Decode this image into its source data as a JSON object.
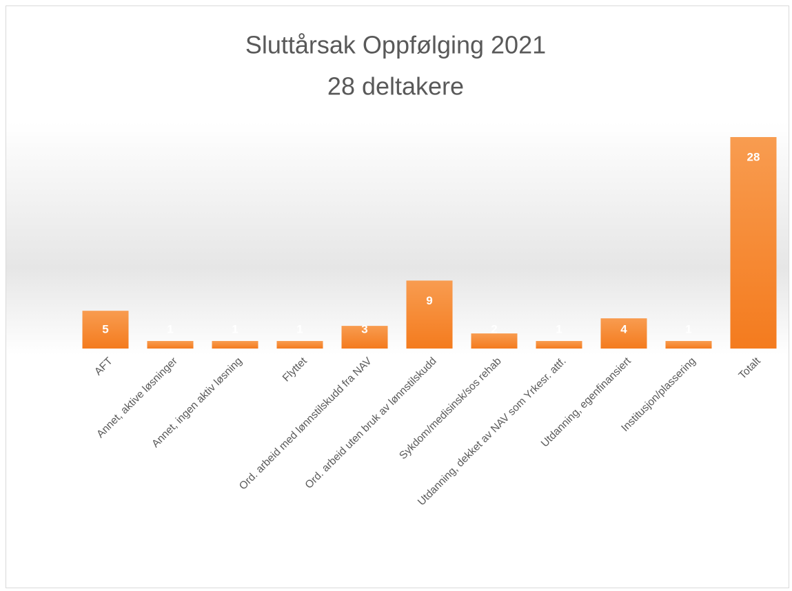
{
  "chart_data": {
    "type": "bar",
    "title": "Sluttårsak Oppfølging 2021",
    "subtitle": "28 deltakere",
    "categories": [
      "AFT",
      "Annet, aktive løsninger",
      "Annet, ingen aktiv løsning",
      "Flyttet",
      "Ord. arbeid med lønnstilskudd fra NAV",
      "Ord. arbeid uten bruk av lønnstilskudd",
      "Sykdom/medisinsk/sos rehab",
      "Utdanning, dekket av NAV som Yrkesr. attf.",
      "Utdanning, egenfinansiert",
      "Institusjon/plassering",
      "Totalt"
    ],
    "values": [
      5,
      1,
      1,
      1,
      3,
      9,
      2,
      1,
      4,
      1,
      28
    ],
    "color": "#f58a36"
  }
}
